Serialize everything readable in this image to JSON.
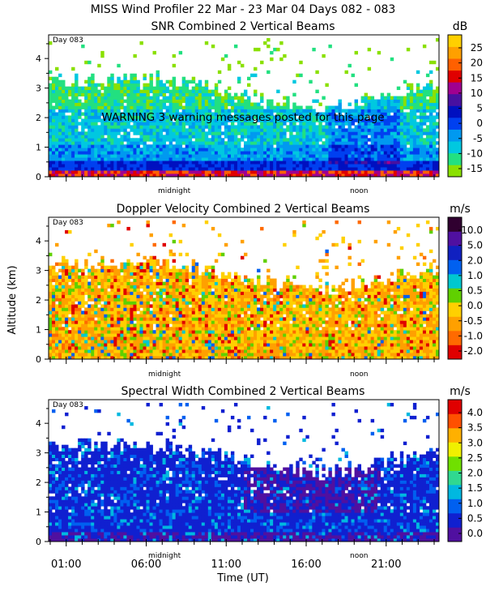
{
  "header": {
    "title": "MISS Wind Profiler  22 Mar - 23 Mar 04 Days 082 - 083"
  },
  "colors": {
    "scale": [
      "#8ae000",
      "#22e080",
      "#00c8e0",
      "#0099f0",
      "#0040f0",
      "#0010c0",
      "#4810a0",
      "#a00090",
      "#e00000",
      "#ff6000",
      "#ffa000",
      "#ffd000"
    ],
    "velocity_scale": [
      "#e00000",
      "#ff6a00",
      "#ffa000",
      "#ffd000",
      "#60d000",
      "#00c8d0",
      "#0060f0",
      "#1020c0",
      "#5010a0",
      "#300030"
    ],
    "width_scale": [
      "#5010a0",
      "#1020d0",
      "#0060f0",
      "#00b8e0",
      "#30d890",
      "#70e000",
      "#f0f000",
      "#ffb000",
      "#ff5000",
      "#e00000"
    ]
  },
  "chart_data": [
    {
      "type": "heatmap",
      "title": "SNR Combined 2 Vertical Beams",
      "units": "dB",
      "day_label": "Day 083",
      "warning": "WARNING  3 warning messages posted for this page",
      "ylabel": "Altitude (km)",
      "ylim": [
        0,
        4.8
      ],
      "yticks": [
        "0",
        "1",
        "2",
        "3",
        "4"
      ],
      "colorbar_ticks": [
        "25",
        "20",
        "15",
        "10",
        "5",
        "0",
        "-5",
        "-10",
        "-15"
      ],
      "time_markers": [
        "midnight",
        "noon"
      ]
    },
    {
      "type": "heatmap",
      "title": "Doppler Velocity Combined 2 Vertical Beams",
      "units": "m/s",
      "day_label": "Day 083",
      "ylabel": "Altitude (km)",
      "ylim": [
        0,
        4.8
      ],
      "yticks": [
        "0",
        "1",
        "2",
        "3",
        "4"
      ],
      "colorbar_ticks": [
        "10.0",
        "5.0",
        "2.0",
        "1.0",
        "0.5",
        "0.0",
        "-0.5",
        "-1.0",
        "-2.0"
      ],
      "time_markers": [
        "midnight",
        "noon"
      ]
    },
    {
      "type": "heatmap",
      "title": "Spectral Width Combined 2 Vertical Beams",
      "units": "m/s",
      "day_label": "Day 083",
      "ylabel": "Altitude (km)",
      "ylim": [
        0,
        4.8
      ],
      "yticks": [
        "0",
        "1",
        "2",
        "3",
        "4"
      ],
      "colorbar_ticks": [
        "4.0",
        "3.5",
        "3.0",
        "2.5",
        "2.0",
        "1.5",
        "1.0",
        "0.5",
        "0.0"
      ],
      "time_markers": [
        "midnight",
        "noon"
      ],
      "xlabel": "Time (UT)",
      "xticks": [
        "01:00",
        "06:00",
        "11:00",
        "16:00",
        "21:00"
      ]
    }
  ],
  "axis": {
    "ylabel": "Altitude (km)"
  }
}
